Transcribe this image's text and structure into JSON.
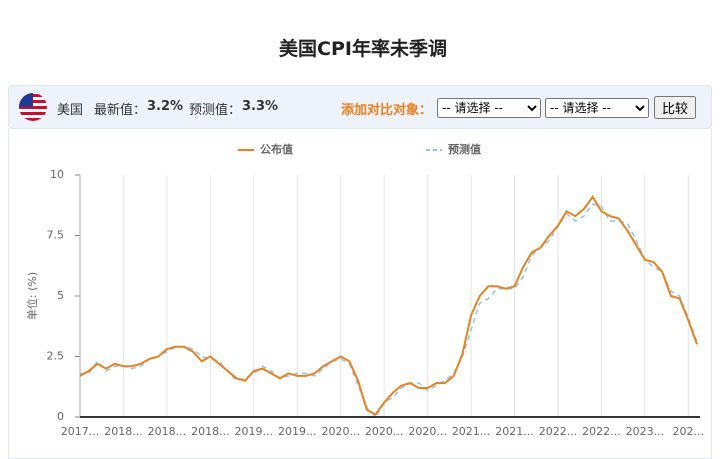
{
  "header": {
    "title": "美国CPI年率未季调",
    "country": "美国",
    "latest_label": "最新值：",
    "latest_value": "3.2%",
    "forecast_label": "预测值：",
    "forecast_value": "3.3%",
    "compare_label": "添加对比对象：",
    "select_1": "-- 请选择 --",
    "select_2": "-- 请选择 --",
    "compare_button": "比较"
  },
  "chart_data": {
    "type": "line",
    "y_label": "单位: (%)",
    "categories": [
      "2017...",
      null,
      null,
      null,
      null,
      "2018...",
      null,
      null,
      null,
      null,
      "2018...",
      null,
      null,
      null,
      null,
      "2018...",
      null,
      null,
      null,
      null,
      "2019...",
      null,
      null,
      null,
      null,
      "2019...",
      null,
      null,
      null,
      null,
      "2020...",
      null,
      null,
      null,
      null,
      "2020...",
      null,
      null,
      null,
      null,
      "2020...",
      null,
      null,
      null,
      null,
      "2021...",
      null,
      null,
      null,
      null,
      "2021...",
      null,
      null,
      null,
      null,
      "2022...",
      null,
      null,
      null,
      null,
      "2022...",
      null,
      null,
      null,
      null,
      "2023...",
      null,
      null,
      null,
      null,
      "202...",
      null
    ],
    "series": [
      {
        "name": "公布值",
        "color": "#e8821e",
        "dashed": false,
        "values": [
          1.7,
          1.9,
          2.2,
          2.0,
          2.2,
          2.1,
          2.1,
          2.2,
          2.4,
          2.5,
          2.8,
          2.9,
          2.9,
          2.7,
          2.3,
          2.5,
          2.2,
          1.9,
          1.6,
          1.5,
          1.9,
          2.0,
          1.8,
          1.6,
          1.8,
          1.7,
          1.7,
          1.8,
          2.1,
          2.3,
          2.5,
          2.3,
          1.5,
          0.3,
          0.1,
          0.6,
          1.0,
          1.3,
          1.4,
          1.2,
          1.2,
          1.4,
          1.4,
          1.7,
          2.6,
          4.2,
          5.0,
          5.4,
          5.4,
          5.3,
          5.4,
          6.2,
          6.8,
          7.0,
          7.5,
          7.9,
          8.5,
          8.3,
          8.6,
          9.1,
          8.5,
          8.3,
          8.2,
          7.7,
          7.1,
          6.5,
          6.4,
          6.0,
          5.0,
          4.9,
          4.0,
          3.0
        ]
      },
      {
        "name": "预测值",
        "color": "#8ec3ea",
        "dashed": true,
        "values": [
          1.8,
          1.8,
          2.3,
          1.9,
          2.1,
          2.1,
          2.0,
          2.1,
          2.4,
          2.5,
          2.7,
          2.9,
          2.9,
          2.8,
          2.5,
          2.4,
          2.3,
          1.9,
          1.5,
          1.6,
          1.8,
          2.1,
          1.9,
          1.6,
          1.7,
          1.8,
          1.8,
          1.7,
          2.0,
          2.3,
          2.4,
          2.2,
          1.3,
          0.4,
          0.0,
          0.6,
          0.8,
          1.2,
          1.4,
          1.4,
          1.1,
          1.3,
          1.5,
          1.8,
          2.5,
          3.6,
          4.7,
          4.9,
          5.3,
          5.3,
          5.3,
          5.8,
          6.7,
          7.0,
          7.3,
          7.9,
          8.4,
          8.1,
          8.3,
          8.8,
          8.7,
          8.1,
          8.1,
          8.0,
          7.3,
          6.5,
          6.2,
          6.0,
          5.2,
          5.0,
          4.1,
          3.1
        ]
      }
    ],
    "ylim": [
      0,
      10
    ],
    "yticks": [
      0,
      2.5,
      5,
      7.5,
      10
    ],
    "grid": "x"
  }
}
